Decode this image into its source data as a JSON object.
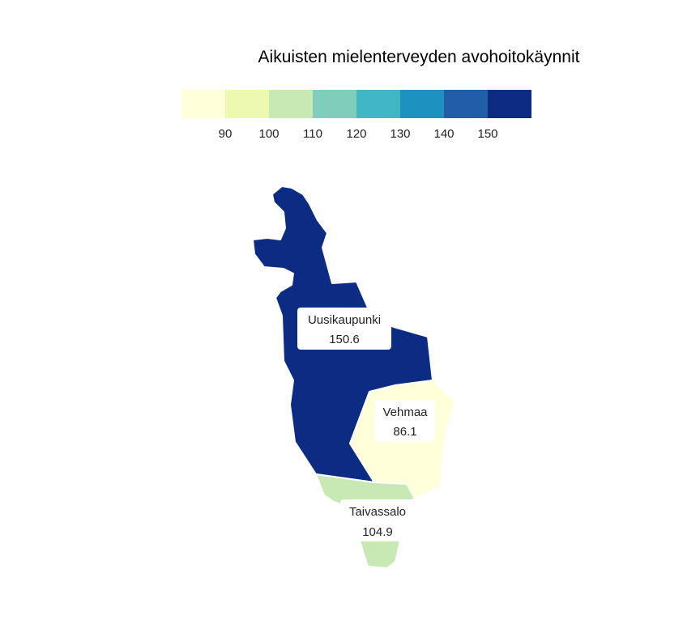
{
  "title": "Aikuisten mielenterveyden avohoitokäynnit",
  "legend": {
    "colors": [
      "#ffffd9",
      "#edf8b1",
      "#c7e9b4",
      "#7fcdbb",
      "#41b6c4",
      "#1d91c0",
      "#225ea8",
      "#0c2c84"
    ],
    "ticks": [
      "90",
      "100",
      "110",
      "120",
      "130",
      "140",
      "150"
    ]
  },
  "regions": [
    {
      "name": "Uusikaupunki",
      "value": "150.6",
      "color": "#0c2c84"
    },
    {
      "name": "Vehmaa",
      "value": "86.1",
      "color": "#ffffd9"
    },
    {
      "name": "Taivassalo",
      "value": "104.9",
      "color": "#c7e9b4"
    }
  ]
}
